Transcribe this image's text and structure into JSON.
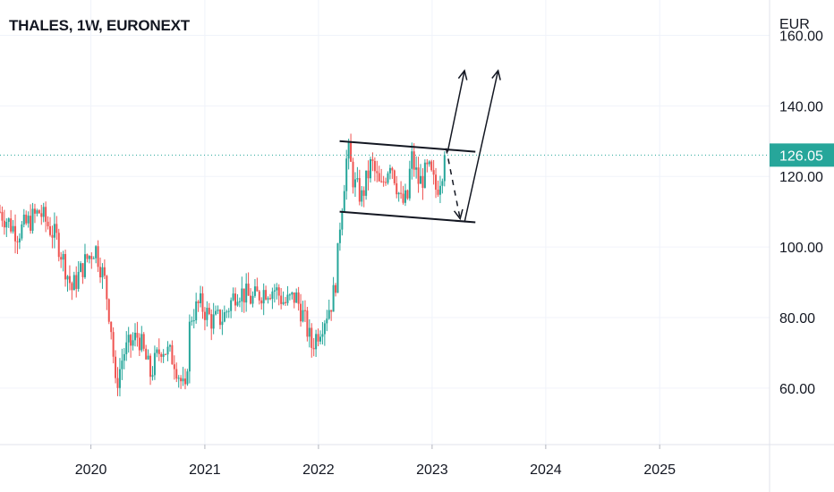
{
  "header": {
    "title": "THALES, 1W, EURONEXT"
  },
  "colors": {
    "up": "#26a69a",
    "down": "#ef5350",
    "price_line": "#26a69a",
    "grid": "#f0f3fa",
    "axis": "#e0e3eb",
    "drawing": "#131722"
  },
  "chart_data": {
    "type": "candlestick",
    "symbol": "THALES",
    "interval": "1W",
    "exchange": "EURONEXT",
    "currency": "EUR",
    "ylim": [
      44,
      170
    ],
    "yticks": [
      60,
      80,
      100,
      120,
      140,
      160
    ],
    "ytick_labels": [
      "60.00",
      "80.00",
      "100.00",
      "120.00",
      "140.00",
      "160.00"
    ],
    "xlim": [
      "2019-03-15",
      "2025-12-20"
    ],
    "xticks": [
      "2020-01-01",
      "2021-01-01",
      "2022-01-01",
      "2023-01-01",
      "2024-01-01",
      "2025-01-01"
    ],
    "xtick_labels": [
      "2020",
      "2021",
      "2022",
      "2023",
      "2024",
      "2025"
    ],
    "last_price": 126.05,
    "last_price_label": "126.05",
    "price_anchors": [
      [
        "2019-03-15",
        110
      ],
      [
        "2019-05-10",
        104
      ],
      [
        "2019-07-20",
        110
      ],
      [
        "2019-09-15",
        102
      ],
      [
        "2019-11-01",
        88
      ],
      [
        "2019-12-15",
        96
      ],
      [
        "2020-01-15",
        100
      ],
      [
        "2020-02-15",
        90
      ],
      [
        "2020-03-08",
        76
      ],
      [
        "2020-03-20",
        60
      ],
      [
        "2020-04-15",
        70
      ],
      [
        "2020-06-01",
        75
      ],
      [
        "2020-07-10",
        64
      ],
      [
        "2020-08-15",
        72
      ],
      [
        "2020-09-25",
        68
      ],
      [
        "2020-10-30",
        58
      ],
      [
        "2020-11-15",
        80
      ],
      [
        "2020-12-15",
        84
      ],
      [
        "2021-01-25",
        79
      ],
      [
        "2021-03-01",
        80
      ],
      [
        "2021-04-15",
        88
      ],
      [
        "2021-06-01",
        85
      ],
      [
        "2021-07-15",
        88
      ],
      [
        "2021-08-15",
        88
      ],
      [
        "2021-09-15",
        84
      ],
      [
        "2021-10-20",
        86
      ],
      [
        "2021-11-15",
        80
      ],
      [
        "2021-12-10",
        72
      ],
      [
        "2022-01-10",
        78
      ],
      [
        "2022-02-15",
        85
      ],
      [
        "2022-02-28",
        92
      ],
      [
        "2022-03-10",
        106
      ],
      [
        "2022-04-05",
        128
      ],
      [
        "2022-04-25",
        118
      ],
      [
        "2022-05-20",
        114
      ],
      [
        "2022-06-20",
        124
      ],
      [
        "2022-07-20",
        116
      ],
      [
        "2022-08-20",
        125
      ],
      [
        "2022-09-25",
        112
      ],
      [
        "2022-10-15",
        114
      ],
      [
        "2022-10-25",
        126
      ],
      [
        "2022-11-20",
        118
      ],
      [
        "2022-12-20",
        122
      ],
      [
        "2023-01-15",
        116
      ],
      [
        "2023-02-15",
        126.05
      ]
    ],
    "drawings": [
      {
        "name": "channel-upper-line",
        "type": "line",
        "points": [
          [
            "2022-03-10",
            130
          ],
          [
            "2023-05-20",
            127
          ]
        ]
      },
      {
        "name": "channel-lower-line",
        "type": "line",
        "points": [
          [
            "2022-03-10",
            110
          ],
          [
            "2023-05-20",
            107
          ]
        ]
      },
      {
        "name": "projection-arrow-1",
        "type": "arrow",
        "points": [
          [
            "2023-02-20",
            127
          ],
          [
            "2023-04-15",
            150
          ]
        ]
      },
      {
        "name": "projection-arrow-2",
        "type": "arrow",
        "points": [
          [
            "2023-04-15",
            107
          ],
          [
            "2023-08-01",
            150
          ]
        ]
      },
      {
        "name": "pullback-dashed-arrow",
        "type": "dashed-arrow",
        "points": [
          [
            "2023-02-15",
            128
          ],
          [
            "2023-04-01",
            108
          ]
        ]
      }
    ]
  },
  "axis": {
    "currency_label": "EUR"
  }
}
